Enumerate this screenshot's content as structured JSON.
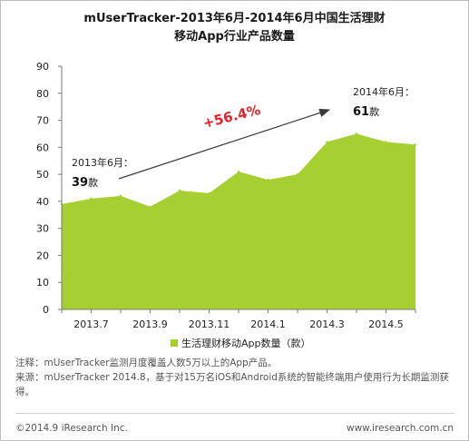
{
  "title_line1": "mUserTracker-2013年6月-2014年6月中国生活理财",
  "title_line2": "移动App行业产品数量",
  "chart_data": {
    "type": "area",
    "x": [
      "2013.6",
      "2013.7",
      "2013.8",
      "2013.9",
      "2013.10",
      "2013.11",
      "2013.12",
      "2014.1",
      "2014.2",
      "2014.3",
      "2014.4",
      "2014.5",
      "2014.6"
    ],
    "tick_labels": [
      "2013.7",
      "2013.9",
      "2013.11",
      "2014.1",
      "2014.3",
      "2014.5"
    ],
    "series": [
      {
        "name": "生活理财移动App数量（款）",
        "values": [
          39,
          41,
          42,
          38,
          44,
          43,
          51,
          48,
          50,
          62,
          65,
          62,
          61
        ]
      }
    ],
    "ylim": [
      0,
      90
    ],
    "yticks": [
      0,
      10,
      20,
      30,
      40,
      50,
      60,
      70,
      80,
      90
    ],
    "grid": false,
    "legend_position": "bottom",
    "colors": {
      "area": "#a6d032",
      "arrow": "#3a3a3a",
      "growth": "#e8212a"
    },
    "annotations": {
      "start_label": "2013年6月：",
      "start_value": "39",
      "start_unit": "款",
      "end_label": "2014年6月：",
      "end_value": "61",
      "end_unit": "款",
      "growth": "+56.4%"
    }
  },
  "notes": {
    "note1": "注释：mUserTracker监测月度覆盖人数5万以上的App产品。",
    "note2": "来源：mUserTracker 2014.8，基于对15万名iOS和Android系统的智能终端用户使用行为长期监测获得。"
  },
  "footer": {
    "copyright": "©2014.9 iResearch Inc.",
    "website": "www.iresearch.com.cn"
  }
}
